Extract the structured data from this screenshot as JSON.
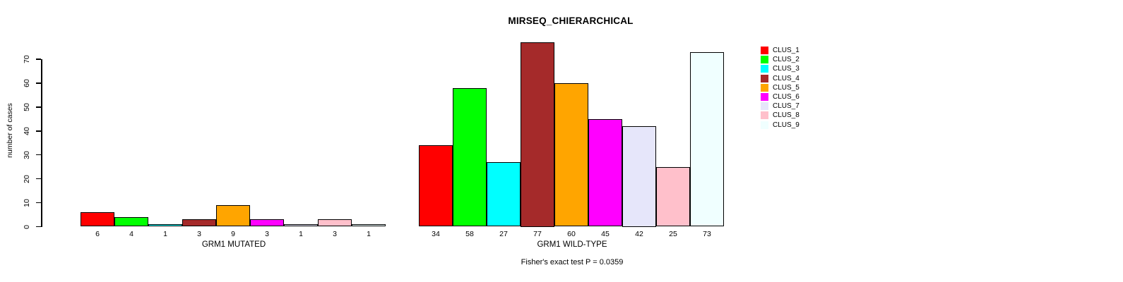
{
  "title": "MIRSEQ_CHIERARCHICAL",
  "chart_data": {
    "type": "bar",
    "title": "MIRSEQ_CHIERARCHICAL",
    "ylabel": "number of cases",
    "xlabel": "",
    "ylim": [
      0,
      70
    ],
    "yticks": [
      0,
      10,
      20,
      30,
      40,
      50,
      60,
      70
    ],
    "grid": false,
    "legend_position": "right",
    "categories": [
      "GRM1 MUTATED",
      "GRM1 WILD-TYPE"
    ],
    "series": [
      {
        "name": "CLUS_1",
        "color": "#FF0000",
        "values": [
          6,
          34
        ]
      },
      {
        "name": "CLUS_2",
        "color": "#00FF00",
        "values": [
          4,
          58
        ]
      },
      {
        "name": "CLUS_3",
        "color": "#00FFFF",
        "values": [
          1,
          27
        ]
      },
      {
        "name": "CLUS_4",
        "color": "#A52A2A",
        "values": [
          3,
          77
        ]
      },
      {
        "name": "CLUS_5",
        "color": "#FFA500",
        "values": [
          9,
          60
        ]
      },
      {
        "name": "CLUS_6",
        "color": "#FF00FF",
        "values": [
          3,
          45
        ]
      },
      {
        "name": "CLUS_7",
        "color": "#E6E6FA",
        "values": [
          1,
          42
        ]
      },
      {
        "name": "CLUS_8",
        "color": "#FFC0CB",
        "values": [
          3,
          25
        ]
      },
      {
        "name": "CLUS_9",
        "color": "#F0FFFF",
        "values": [
          1,
          73
        ]
      }
    ],
    "bar_value_labels": {
      "GRM1 MUTATED": [
        6,
        4,
        1,
        3,
        9,
        3,
        1,
        3,
        1
      ],
      "GRM1 WILD-TYPE": [
        34,
        58,
        27,
        77,
        60,
        45,
        42,
        25,
        73
      ]
    },
    "annotation": "Fisher's exact test P = 0.0359"
  }
}
